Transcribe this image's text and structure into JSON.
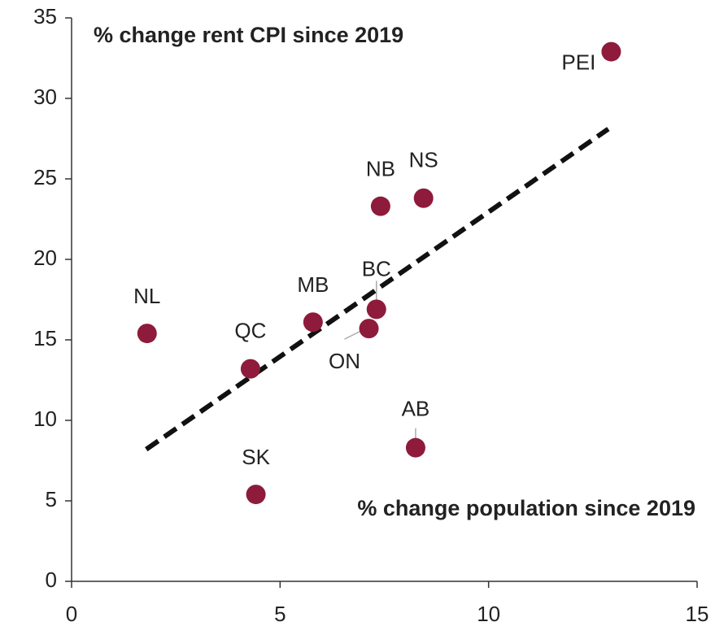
{
  "chart_data": {
    "type": "scatter",
    "title": "% change rent CPI since 2019",
    "x_label": "% change population since 2019",
    "labels": [
      "PEI",
      "NS",
      "NB",
      "BC",
      "ON",
      "MB",
      "QC",
      "NL",
      "SK",
      "AB"
    ],
    "x": [
      12.94,
      8.44,
      7.41,
      7.31,
      7.13,
      5.79,
      4.29,
      1.81,
      4.42,
      8.25
    ],
    "y": [
      32.9,
      23.8,
      23.3,
      16.9,
      15.7,
      16.1,
      13.2,
      15.4,
      5.4,
      8.3
    ],
    "color": "#8e1b3b",
    "trendline": {
      "x": [
        1.79,
        12.87
      ],
      "y": [
        8.2,
        28.1
      ],
      "color": "#111111"
    },
    "xlim": [
      0,
      15
    ],
    "xticks": [
      0,
      5,
      10,
      15
    ],
    "ylim": [
      0,
      35
    ],
    "yticks": [
      0,
      5,
      10,
      15,
      20,
      25,
      30,
      35
    ]
  }
}
